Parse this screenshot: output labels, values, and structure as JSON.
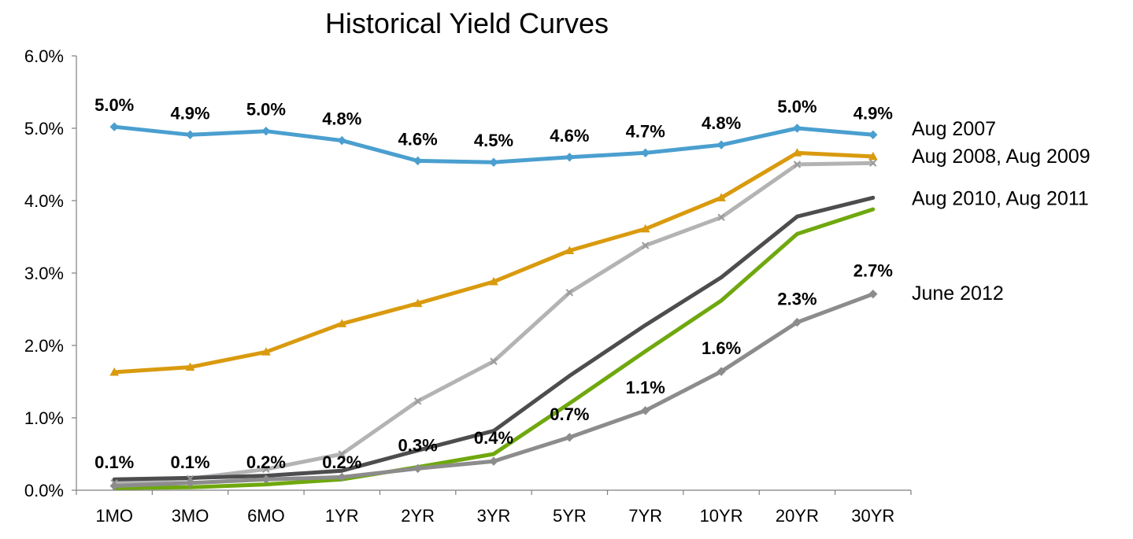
{
  "chart_data": {
    "type": "line",
    "title": "Historical Yield Curves",
    "xlabel": "",
    "ylabel": "",
    "categories": [
      "1MO",
      "3MO",
      "6MO",
      "1YR",
      "2YR",
      "3YR",
      "5YR",
      "7YR",
      "10YR",
      "20YR",
      "30YR"
    ],
    "ylim": [
      0,
      6
    ],
    "y_ticks": [
      "0.0%",
      "1.0%",
      "2.0%",
      "3.0%",
      "4.0%",
      "5.0%",
      "6.0%"
    ],
    "grid": false,
    "legend": "right, labels placed at line ends",
    "series": [
      {
        "name": "Aug 2007",
        "color": "#4a9fcf",
        "marker": "diamond",
        "values": [
          5.02,
          4.91,
          4.96,
          4.83,
          4.55,
          4.53,
          4.6,
          4.66,
          4.77,
          5.0,
          4.91
        ],
        "data_labels": [
          "5.0%",
          "4.9%",
          "5.0%",
          "4.8%",
          "4.6%",
          "4.5%",
          "4.6%",
          "4.7%",
          "4.8%",
          "5.0%",
          "4.9%"
        ]
      },
      {
        "name": "Aug 2008",
        "color": "#d99a0e",
        "marker": "triangle",
        "values": [
          1.63,
          1.7,
          1.91,
          2.3,
          2.58,
          2.88,
          3.31,
          3.61,
          4.04,
          4.66,
          4.61
        ],
        "data_labels": []
      },
      {
        "name": "Aug 2009",
        "color": "#b3b3b3",
        "marker": "x",
        "values": [
          0.1,
          0.16,
          0.29,
          0.5,
          1.23,
          1.78,
          2.73,
          3.38,
          3.77,
          4.5,
          4.52
        ],
        "data_labels": []
      },
      {
        "name": "Aug 2010",
        "color": "#4d4d4f",
        "marker": "none",
        "values": [
          0.15,
          0.17,
          0.2,
          0.27,
          0.55,
          0.82,
          1.58,
          2.28,
          2.94,
          3.78,
          4.04
        ],
        "data_labels": []
      },
      {
        "name": "Aug 2011",
        "color": "#6fa80e",
        "marker": "none",
        "values": [
          0.03,
          0.04,
          0.08,
          0.15,
          0.32,
          0.5,
          1.2,
          1.92,
          2.62,
          3.54,
          3.88
        ],
        "data_labels": []
      },
      {
        "name": "June 2012",
        "color": "#8c8c8c",
        "marker": "diamond",
        "values": [
          0.06,
          0.1,
          0.15,
          0.18,
          0.3,
          0.4,
          0.73,
          1.1,
          1.64,
          2.32,
          2.71
        ],
        "data_labels": [
          "0.1%",
          "0.1%",
          "0.2%",
          "0.2%",
          "0.3%",
          "0.4%",
          "0.7%",
          "1.1%",
          "1.6%",
          "2.3%",
          "2.7%"
        ]
      }
    ],
    "legend_labels": [
      {
        "text": "Aug 2007",
        "value": 5.0
      },
      {
        "text": "Aug 2008, Aug 2009",
        "value": 4.62
      },
      {
        "text": "Aug 2010, Aug 2011",
        "value": 4.04
      },
      {
        "text": "June 2012",
        "value": 2.73
      }
    ]
  }
}
